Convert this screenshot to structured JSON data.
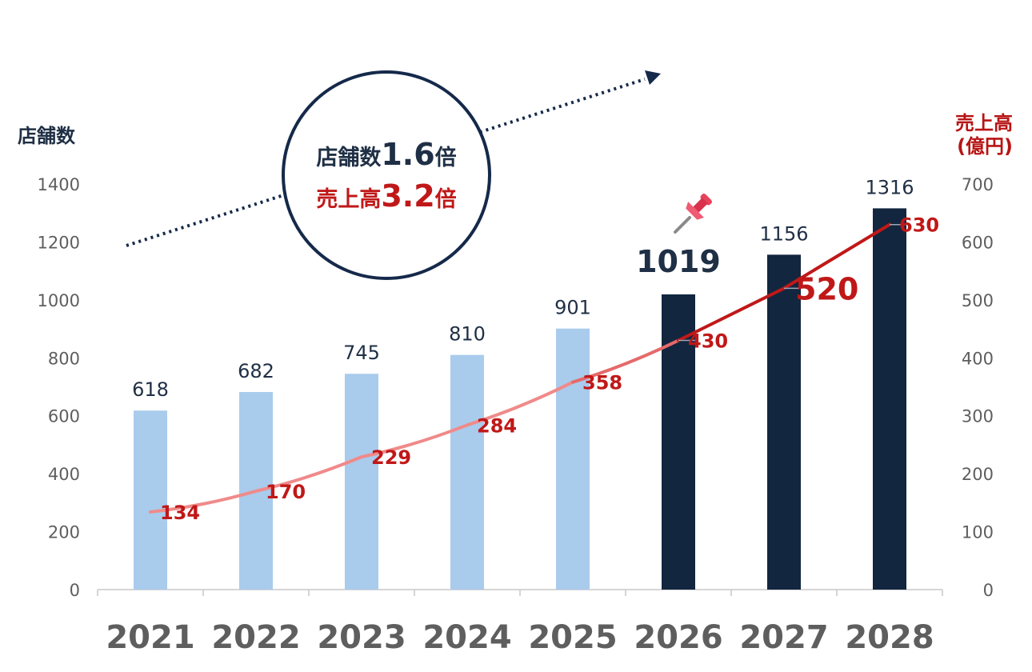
{
  "chart_data": {
    "type": "bar",
    "categories": [
      "2021",
      "2022",
      "2023",
      "2024",
      "2025",
      "2026",
      "2027",
      "2028"
    ],
    "series": [
      {
        "axis": "left",
        "type": "bar",
        "values": [
          618,
          682,
          745,
          810,
          901,
          1019,
          1156,
          1316
        ],
        "value_labels": [
          "618",
          "682",
          "745",
          "810",
          "901",
          "1019",
          "1156",
          "1316"
        ],
        "colors": [
          "#a9cbec",
          "#a9cbec",
          "#a9cbec",
          "#a9cbec",
          "#a9cbec",
          "#12263f",
          "#12263f",
          "#12263f"
        ]
      },
      {
        "axis": "right",
        "type": "line",
        "values": [
          134,
          170,
          229,
          284,
          358,
          430,
          520,
          630
        ],
        "value_labels": [
          "134",
          "170",
          "229",
          "284",
          "358",
          "430",
          "520",
          "630"
        ],
        "colors": [
          "#f08a8a",
          "#c01818"
        ]
      }
    ],
    "left_axis": {
      "title": "店舗数",
      "ylim": [
        0,
        1400
      ],
      "ticks": [
        "0",
        "200",
        "400",
        "600",
        "800",
        "1000",
        "1200",
        "1400"
      ]
    },
    "right_axis": {
      "title_line1": "売上高",
      "title_line2": "(億円)",
      "ylim": [
        0,
        700
      ],
      "ticks": [
        "0",
        "100",
        "200",
        "300",
        "400",
        "500",
        "600",
        "700"
      ]
    },
    "grid": false,
    "highlight": {
      "line1_prefix": "店舗数",
      "line1_value": "1.6",
      "line1_suffix": "倍",
      "line2_prefix": "売上高",
      "line2_value": "3.2",
      "line2_suffix": "倍"
    },
    "colors": {
      "bar_actual": "#a9cbec",
      "bar_forecast": "#12263f",
      "line_actual": "#f08a8a",
      "line_forecast": "#c01818",
      "left_axis_title": "#1f2f45",
      "right_axis_title": "#b81414",
      "circle_border": "#15294a"
    },
    "icons": {
      "pin": "pushpin-icon",
      "trend_arrow": "dotted-arrow-icon"
    }
  }
}
